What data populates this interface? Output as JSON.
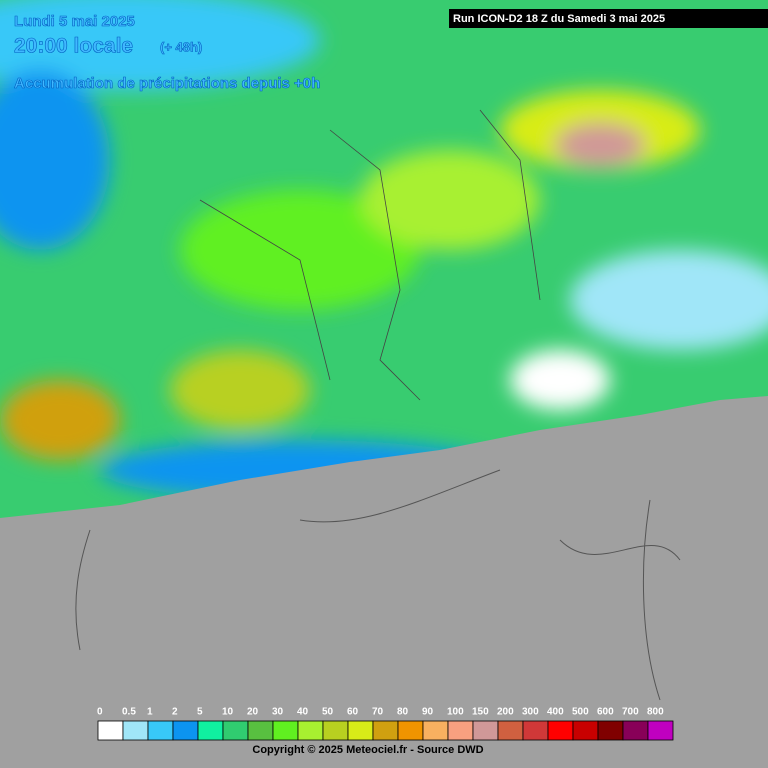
{
  "header": {
    "date": "Lundi 5 mai 2025",
    "time": "20:00 locale",
    "lead": "(+ 48h)",
    "parameter": "Accumulation de précipitations depuis +0h",
    "run": "Run ICON-D2 18 Z du Samedi 3 mai 2025"
  },
  "legend": {
    "items": [
      {
        "label": "0",
        "color": "#ffffff"
      },
      {
        "label": "0.5",
        "color": "#a0e6f8"
      },
      {
        "label": "1",
        "color": "#38c8f8"
      },
      {
        "label": "2",
        "color": "#0c94f0"
      },
      {
        "label": "5",
        "color": "#10f0a0"
      },
      {
        "label": "10",
        "color": "#30cc70"
      },
      {
        "label": "20",
        "color": "#58c040"
      },
      {
        "label": "30",
        "color": "#60f020"
      },
      {
        "label": "40",
        "color": "#a8f030"
      },
      {
        "label": "50",
        "color": "#b8d020"
      },
      {
        "label": "60",
        "color": "#d8ec18"
      },
      {
        "label": "70",
        "color": "#d0a010"
      },
      {
        "label": "80",
        "color": "#f09400"
      },
      {
        "label": "90",
        "color": "#f8b060"
      },
      {
        "label": "100",
        "color": "#f8a080"
      },
      {
        "label": "150",
        "color": "#d09898"
      },
      {
        "label": "200",
        "color": "#d06040"
      },
      {
        "label": "300",
        "color": "#d03838"
      },
      {
        "label": "400",
        "color": "#ff0000"
      },
      {
        "label": "500",
        "color": "#c80000"
      },
      {
        "label": "600",
        "color": "#800000"
      },
      {
        "label": "700",
        "color": "#880058"
      },
      {
        "label": "800",
        "color": "#c000c0"
      }
    ]
  },
  "footer": {
    "copyright": "Copyright © 2025 Meteociel.fr - Source DWD"
  }
}
